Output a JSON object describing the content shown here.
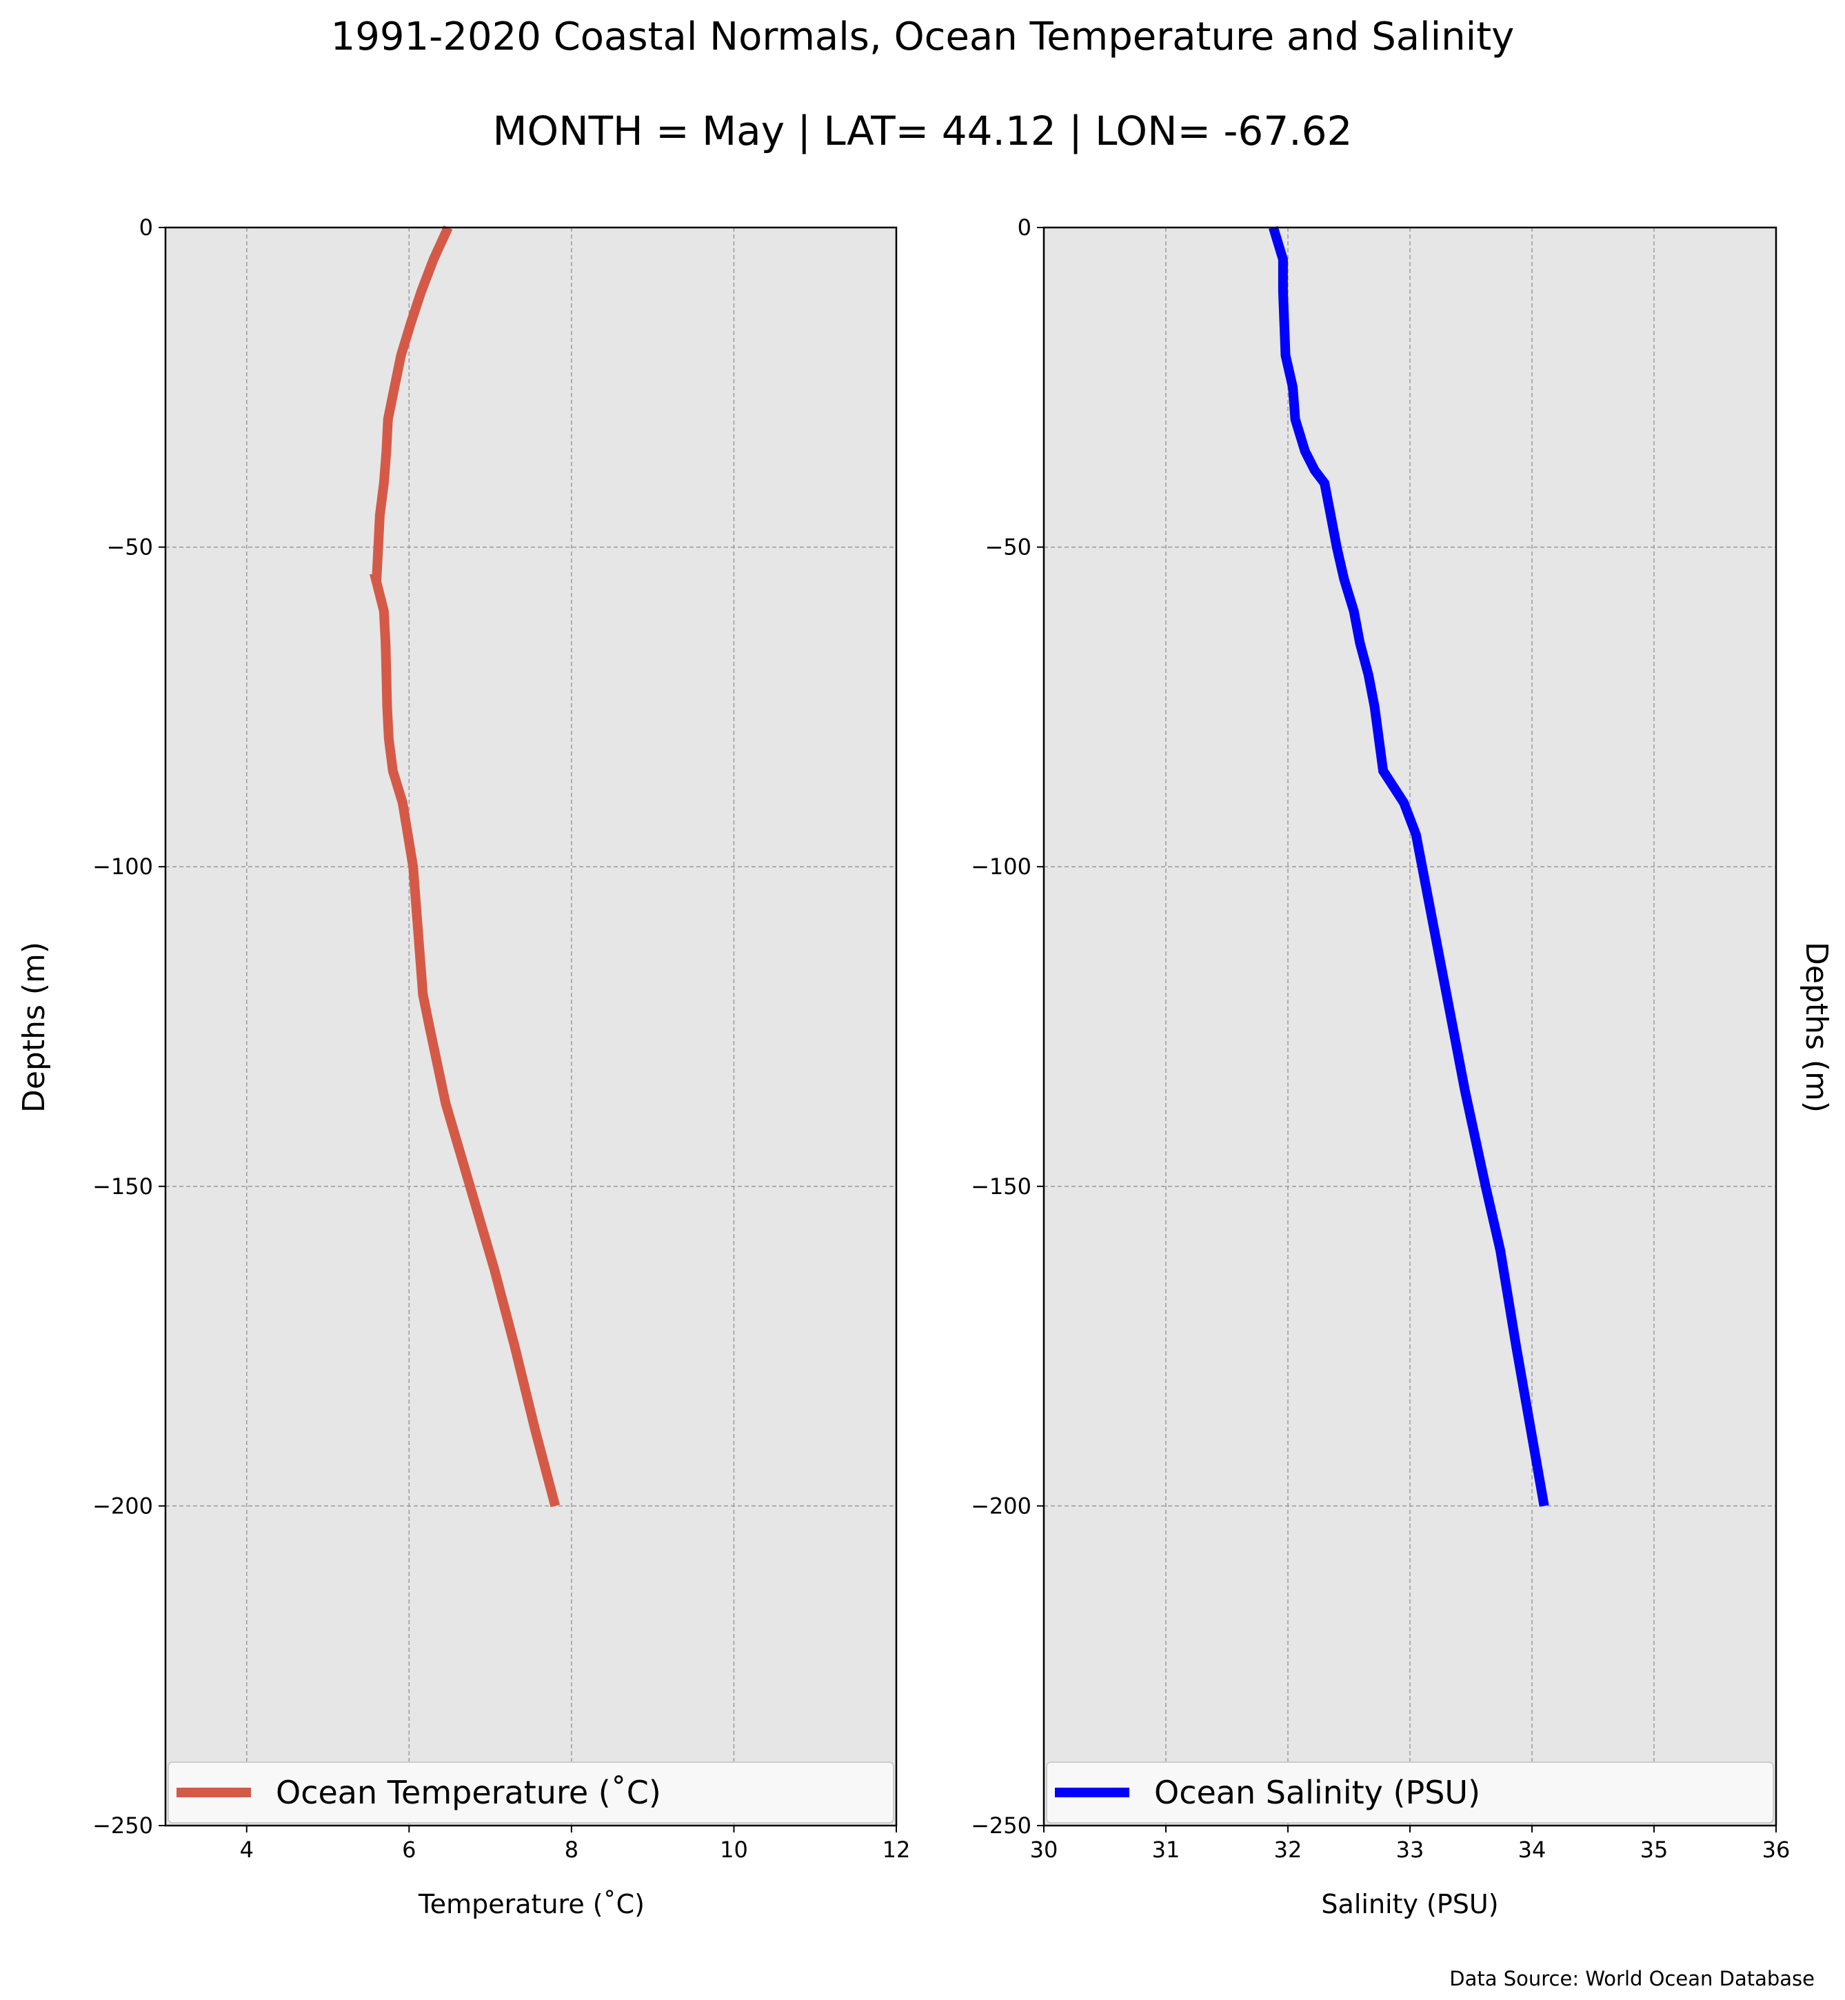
{
  "title": "1991-2020 Coastal Normals, Ocean Temperature and Salinity",
  "subtitle": "MONTH = May | LAT= 44.12 | LON= -67.62",
  "source": "Data Source: World Ocean Database",
  "colors": {
    "plot_bg": "#e6e6e6",
    "grid": "#999999",
    "temperature": "#d45a47",
    "salinity": "#0000ff"
  },
  "chart_data": [
    {
      "type": "line",
      "xlabel": "Temperature ($^\\circ$C)",
      "xlabel_display": "Temperature (˚C)",
      "ylabel": "Depths (m)",
      "xlim": [
        3,
        12
      ],
      "ylim": [
        -250,
        0
      ],
      "xticks": [
        4,
        6,
        8,
        10,
        12
      ],
      "yticks": [
        0,
        -50,
        -100,
        -150,
        -200,
        -250
      ],
      "ytick_labels": [
        "0",
        "−50",
        "−100",
        "−150",
        "−200",
        "−250"
      ],
      "grid": true,
      "legend_position": "bottom",
      "series": [
        {
          "name": "Ocean Temperature (˚C)",
          "color": "#d45a47",
          "x": [
            6.48,
            6.3,
            6.15,
            6.02,
            5.9,
            5.82,
            5.74,
            5.72,
            5.69,
            5.64,
            5.62,
            5.6,
            5.59,
            5.69,
            5.71,
            5.72,
            5.73,
            5.75,
            5.8,
            5.92,
            6.05,
            6.11,
            6.17,
            6.25,
            6.45,
            6.75,
            7.05,
            7.3,
            7.55,
            7.8
          ],
          "y": [
            0,
            -5,
            -10,
            -15,
            -20,
            -25,
            -30,
            -35,
            -40,
            -45,
            -50,
            -55,
            -55,
            -60,
            -65,
            -70,
            -75,
            -80,
            -85,
            -90,
            -100,
            -110,
            -120,
            -125,
            -137,
            -150,
            -163,
            -175,
            -188,
            -200
          ]
        }
      ]
    },
    {
      "type": "line",
      "xlabel": "Salinity (PSU)",
      "ylabel": "Depths (m)",
      "xlim": [
        30,
        36
      ],
      "ylim": [
        -250,
        0
      ],
      "xticks": [
        30,
        31,
        32,
        33,
        34,
        35,
        36
      ],
      "yticks": [
        0,
        -50,
        -100,
        -150,
        -200,
        -250
      ],
      "ytick_labels": [
        "0",
        "−50",
        "−100",
        "−150",
        "−200",
        "−250"
      ],
      "grid": true,
      "legend_position": "bottom",
      "series": [
        {
          "name": "Ocean Salinity (PSU)",
          "color": "#0000ff",
          "x": [
            31.88,
            31.96,
            31.96,
            31.97,
            31.98,
            32.04,
            32.06,
            32.14,
            32.22,
            32.3,
            32.35,
            32.4,
            32.46,
            32.54,
            32.59,
            32.66,
            32.71,
            32.78,
            32.95,
            33.05,
            33.2,
            33.45,
            33.62,
            33.74,
            33.87,
            34.1
          ],
          "y": [
            0,
            -5,
            -10,
            -15,
            -20,
            -25,
            -30,
            -35,
            -38,
            -40,
            -45,
            -50,
            -55,
            -60,
            -65,
            -70,
            -75,
            -85,
            -90,
            -95,
            -110,
            -135,
            -150,
            -160,
            -175,
            -200
          ]
        }
      ]
    }
  ]
}
